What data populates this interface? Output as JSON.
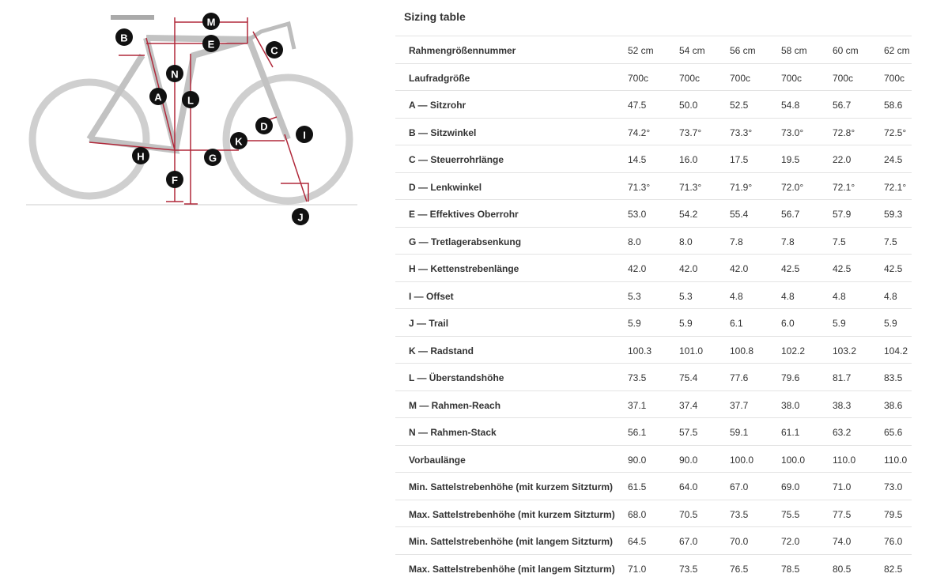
{
  "diagram": {
    "labels": [
      "M",
      "B",
      "E",
      "C",
      "N",
      "A",
      "L",
      "D",
      "I",
      "K",
      "H",
      "G",
      "F",
      "J"
    ]
  },
  "table": {
    "title": "Sizing table",
    "rows": [
      [
        "Rahmengrößennummer",
        "52 cm",
        "54 cm",
        "56 cm",
        "58 cm",
        "60 cm",
        "62 cm"
      ],
      [
        "Laufradgröße",
        "700c",
        "700c",
        "700c",
        "700c",
        "700c",
        "700c"
      ],
      [
        "A — Sitzrohr",
        "47.5",
        "50.0",
        "52.5",
        "54.8",
        "56.7",
        "58.6"
      ],
      [
        "B — Sitzwinkel",
        "74.2°",
        "73.7°",
        "73.3°",
        "73.0°",
        "72.8°",
        "72.5°"
      ],
      [
        "C — Steuerrohrlänge",
        "14.5",
        "16.0",
        "17.5",
        "19.5",
        "22.0",
        "24.5"
      ],
      [
        "D — Lenkwinkel",
        "71.3°",
        "71.3°",
        "71.9°",
        "72.0°",
        "72.1°",
        "72.1°"
      ],
      [
        "E — Effektives Oberrohr",
        "53.0",
        "54.2",
        "55.4",
        "56.7",
        "57.9",
        "59.3"
      ],
      [
        "G — Tretlagerabsenkung",
        "8.0",
        "8.0",
        "7.8",
        "7.8",
        "7.5",
        "7.5"
      ],
      [
        "H — Kettenstrebenlänge",
        "42.0",
        "42.0",
        "42.0",
        "42.5",
        "42.5",
        "42.5"
      ],
      [
        "I — Offset",
        "5.3",
        "5.3",
        "4.8",
        "4.8",
        "4.8",
        "4.8"
      ],
      [
        "J — Trail",
        "5.9",
        "5.9",
        "6.1",
        "6.0",
        "5.9",
        "5.9"
      ],
      [
        "K — Radstand",
        "100.3",
        "101.0",
        "100.8",
        "102.2",
        "103.2",
        "104.2"
      ],
      [
        "L — Überstandshöhe",
        "73.5",
        "75.4",
        "77.6",
        "79.6",
        "81.7",
        "83.5"
      ],
      [
        "M — Rahmen-Reach",
        "37.1",
        "37.4",
        "37.7",
        "38.0",
        "38.3",
        "38.6"
      ],
      [
        "N — Rahmen-Stack",
        "56.1",
        "57.5",
        "59.1",
        "61.1",
        "63.2",
        "65.6"
      ],
      [
        "Vorbaulänge",
        "90.0",
        "90.0",
        "100.0",
        "100.0",
        "110.0",
        "110.0"
      ],
      [
        "Min. Sattelstrebenhöhe (mit kurzem Sitzturm)",
        "61.5",
        "64.0",
        "67.0",
        "69.0",
        "71.0",
        "73.0"
      ],
      [
        "Max. Sattelstrebenhöhe (mit kurzem Sitzturm)",
        "68.0",
        "70.5",
        "73.5",
        "75.5",
        "77.5",
        "79.5"
      ],
      [
        "Min. Sattelstrebenhöhe (mit langem Sitzturm)",
        "64.5",
        "67.0",
        "70.0",
        "72.0",
        "74.0",
        "76.0"
      ],
      [
        "Max. Sattelstrebenhöhe (mit langem Sitzturm)",
        "71.0",
        "73.5",
        "76.5",
        "78.5",
        "80.5",
        "82.5"
      ]
    ]
  }
}
